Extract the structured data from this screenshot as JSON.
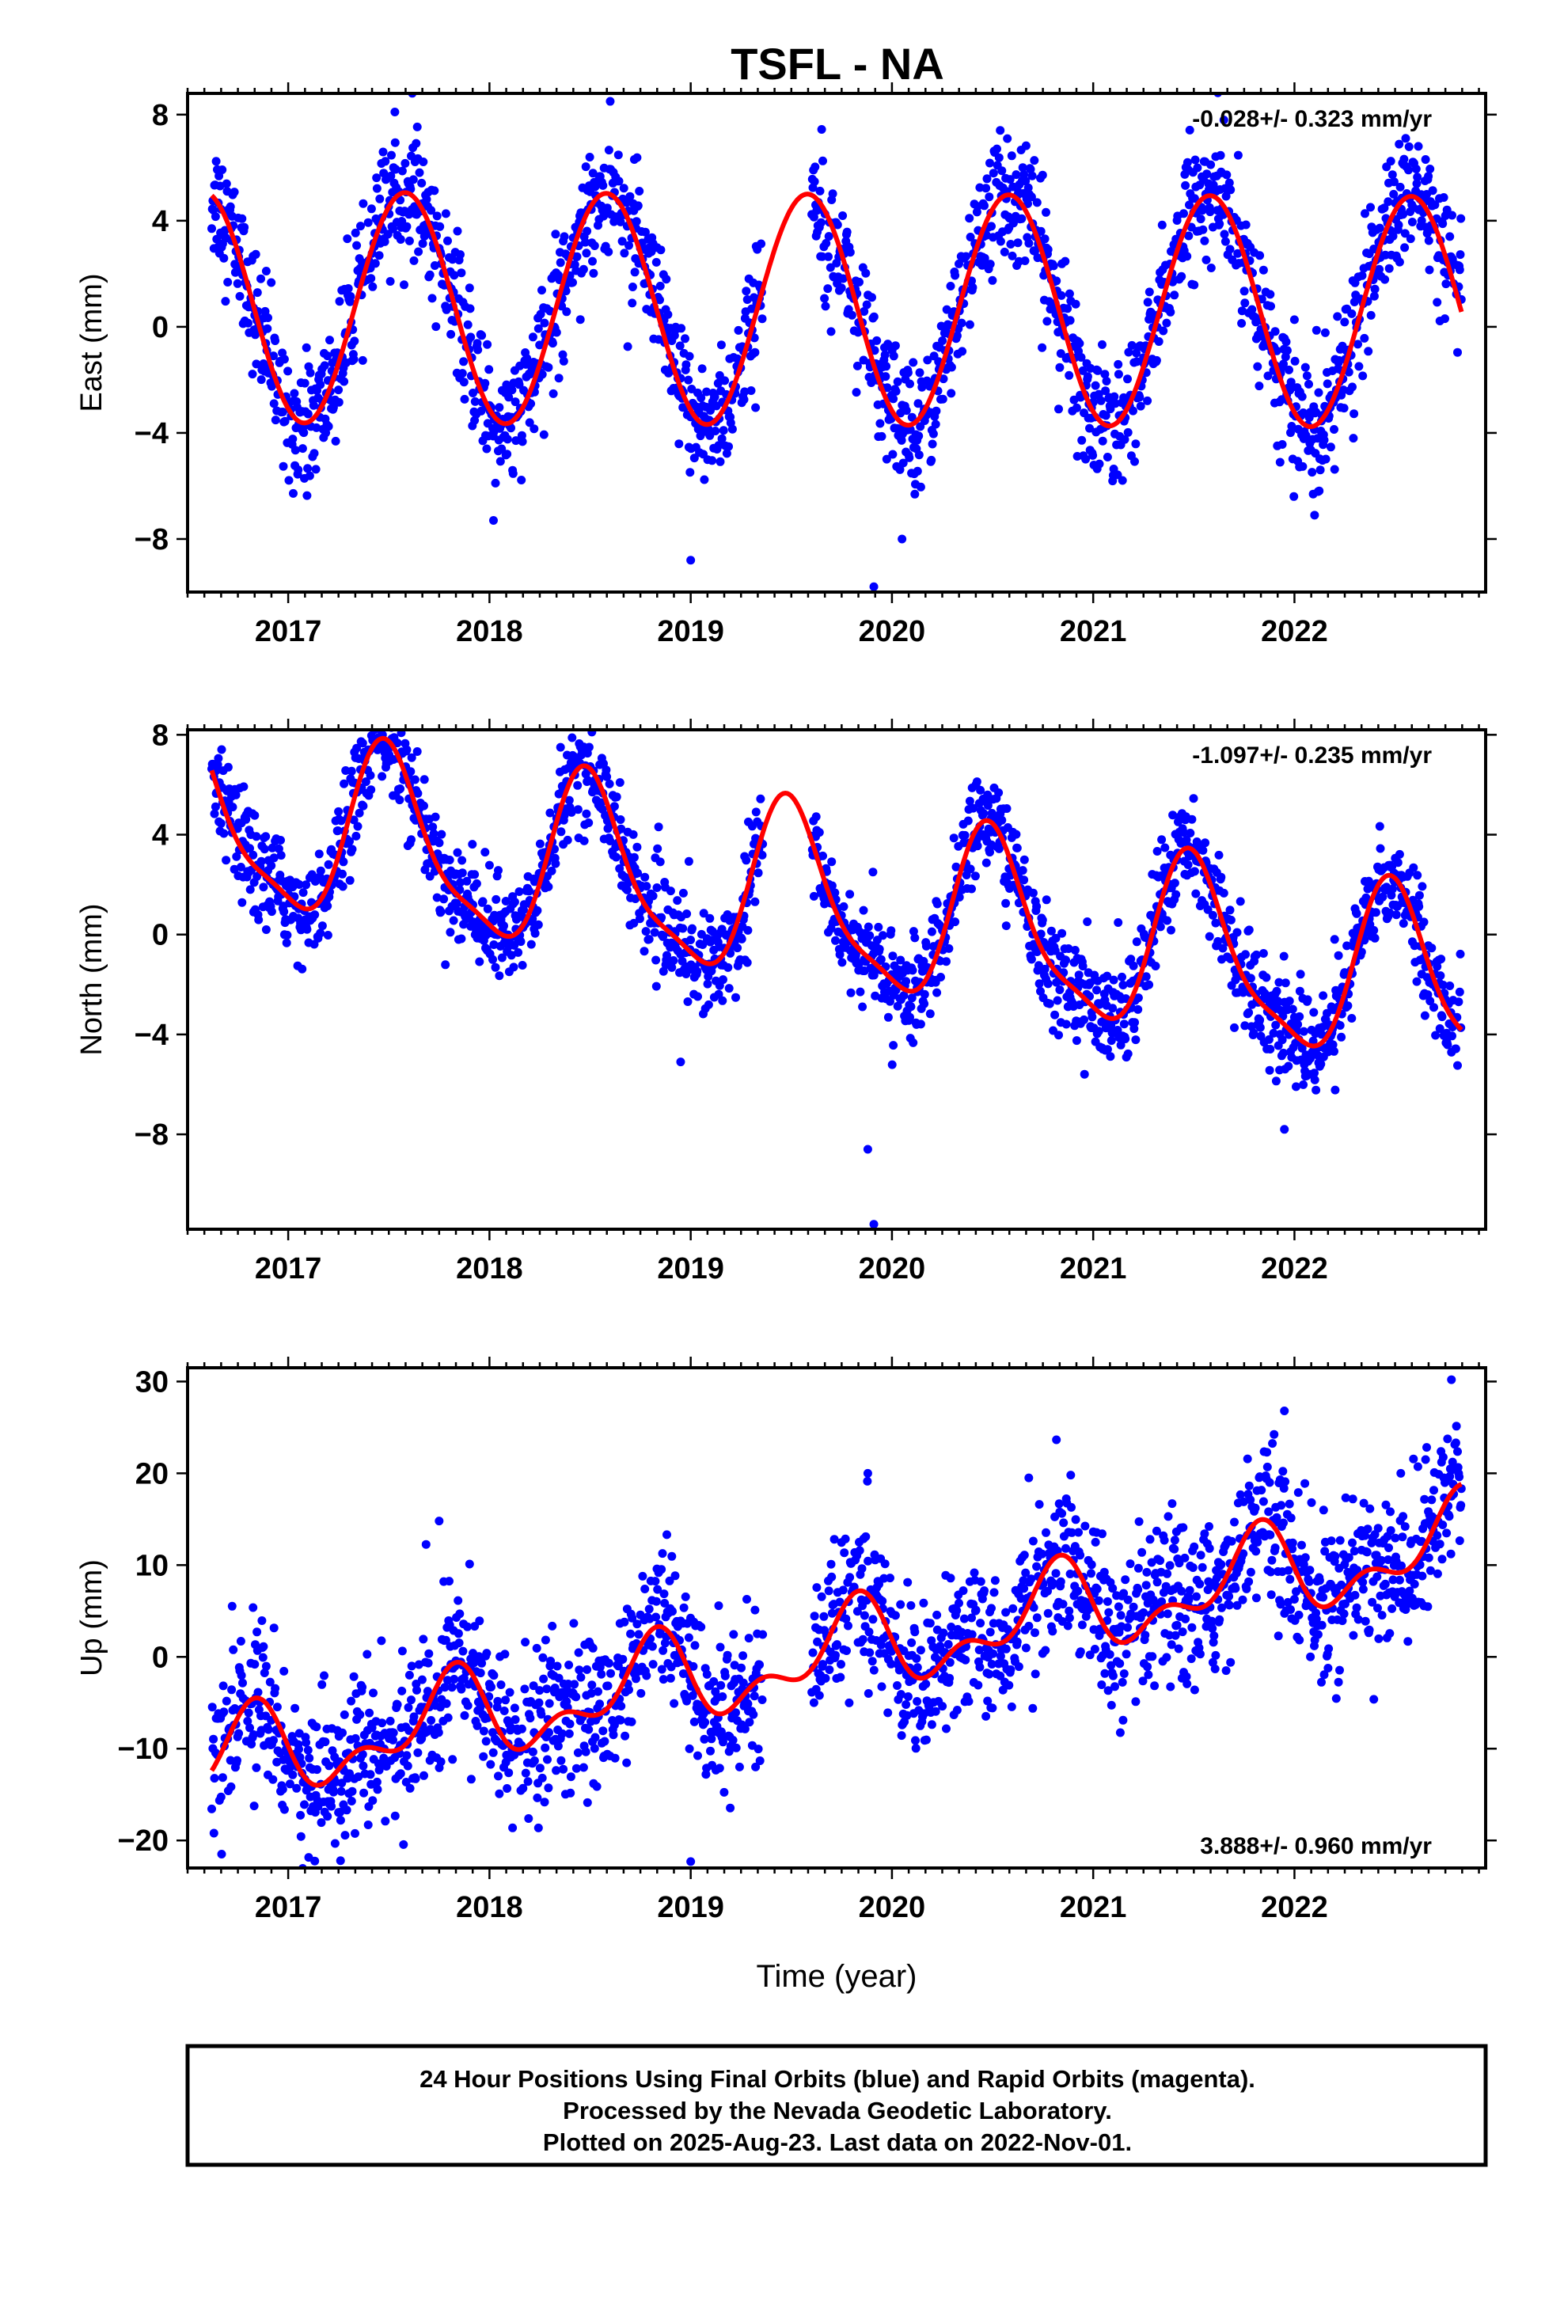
{
  "title": "TSFL - NA",
  "colors": {
    "points": "#0000ff",
    "fit": "#ff0000",
    "frame": "#000000"
  },
  "footer": {
    "line1": "24 Hour Positions Using Final Orbits (blue) and Rapid Orbits (magenta).",
    "line2": "Processed by the Nevada Geodetic Laboratory.",
    "line3": "Plotted on 2025-Aug-23. Last data on 2022-Nov-01."
  },
  "chart_data": [
    {
      "type": "scatter",
      "ylabel": "East (mm)",
      "xlabel": "",
      "xlim": [
        2016.5,
        2022.95
      ],
      "ylim": [
        -10,
        8.8
      ],
      "xticks": [
        2017,
        2018,
        2019,
        2020,
        2021,
        2022
      ],
      "yticks": [
        8,
        4,
        0,
        -4,
        -8
      ],
      "ytick_labels": [
        "8",
        "4",
        "0",
        "−4",
        "−8"
      ],
      "rate": "-0.028+/- 0.323 mm/yr",
      "rate_position": "top-right",
      "fit": {
        "mean": 0.65,
        "trend": -0.028,
        "annual_amp": 4.35,
        "annual_peak": 0.58,
        "semiannual_amp": 0.0,
        "semiannual_peak": 0.0
      },
      "scatter_sd": 1.2,
      "gap": [
        2019.36,
        2019.6
      ],
      "outliers": [
        [
          2019.91,
          -9.8
        ],
        [
          2019.0,
          -8.8
        ],
        [
          2018.02,
          -7.3
        ],
        [
          2022.1,
          -7.1
        ],
        [
          2020.05,
          -8.0
        ],
        [
          2018.6,
          8.5
        ],
        [
          2017.53,
          8.1
        ]
      ],
      "x_start": 2016.62,
      "x_end": 2022.83
    },
    {
      "type": "scatter",
      "ylabel": "North (mm)",
      "xlabel": "",
      "xlim": [
        2016.5,
        2022.95
      ],
      "ylim": [
        -11.8,
        8.2
      ],
      "xticks": [
        2017,
        2018,
        2019,
        2020,
        2021,
        2022
      ],
      "yticks": [
        8,
        4,
        0,
        -4,
        -8
      ],
      "ytick_labels": [
        "8",
        "4",
        "0",
        "−4",
        "−8"
      ],
      "rate": "-1.097+/- 0.235 mm/yr",
      "rate_position": "top-right",
      "fit": {
        "mean": 1.2,
        "trend": -1.097,
        "annual_amp": 3.4,
        "annual_peak": 0.5,
        "semiannual_amp": 0.9,
        "semiannual_peak": 0.45
      },
      "scatter_sd": 1.0,
      "gap": [
        2019.36,
        2019.6
      ],
      "outliers": [
        [
          2019.91,
          -11.6
        ],
        [
          2019.88,
          -8.6
        ],
        [
          2018.95,
          -5.1
        ],
        [
          2017.45,
          7.9
        ],
        [
          2021.95,
          -7.8
        ]
      ],
      "x_start": 2016.62,
      "x_end": 2022.83
    },
    {
      "type": "scatter",
      "ylabel": "Up (mm)",
      "xlabel": "Time (year)",
      "xlim": [
        2016.5,
        2022.95
      ],
      "ylim": [
        -23,
        31.5
      ],
      "xticks": [
        2017,
        2018,
        2019,
        2020,
        2021,
        2022
      ],
      "yticks": [
        30,
        20,
        10,
        0,
        -10,
        -20
      ],
      "ytick_labels": [
        "30",
        "20",
        "10",
        "0",
        "−10",
        "−20"
      ],
      "rate": "3.888+/- 0.960 mm/yr",
      "rate_position": "bottom-right",
      "fit": {
        "mean": 0.3,
        "trend": 3.888,
        "annual_amp": 4.0,
        "annual_peak": 0.8,
        "semiannual_amp": 2.5,
        "semiannual_peak": 0.35
      },
      "scatter_sd": 4.2,
      "gap": [
        2019.36,
        2019.6
      ],
      "outliers": [
        [
          2022.78,
          30.2
        ],
        [
          2021.95,
          26.8
        ],
        [
          2019.88,
          20.0
        ],
        [
          2019.0,
          -22.3
        ],
        [
          2017.26,
          -22.2
        ],
        [
          2017.75,
          14.8
        ],
        [
          2020.68,
          19.5
        ]
      ],
      "x_start": 2016.62,
      "x_end": 2022.83
    }
  ]
}
